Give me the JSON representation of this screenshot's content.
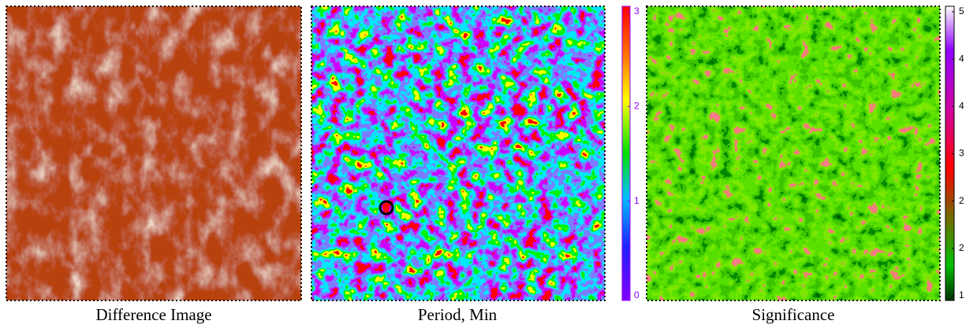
{
  "panels": [
    {
      "caption": "Difference Image"
    },
    {
      "caption": "Period, Min",
      "colorbar": {
        "ticks": [
          "0",
          "1",
          "2",
          "3"
        ]
      }
    },
    {
      "caption": "Significance",
      "colorbar": {
        "ticks": [
          "1",
          "2",
          "2",
          "3",
          "4",
          "4",
          "5"
        ]
      }
    }
  ]
}
